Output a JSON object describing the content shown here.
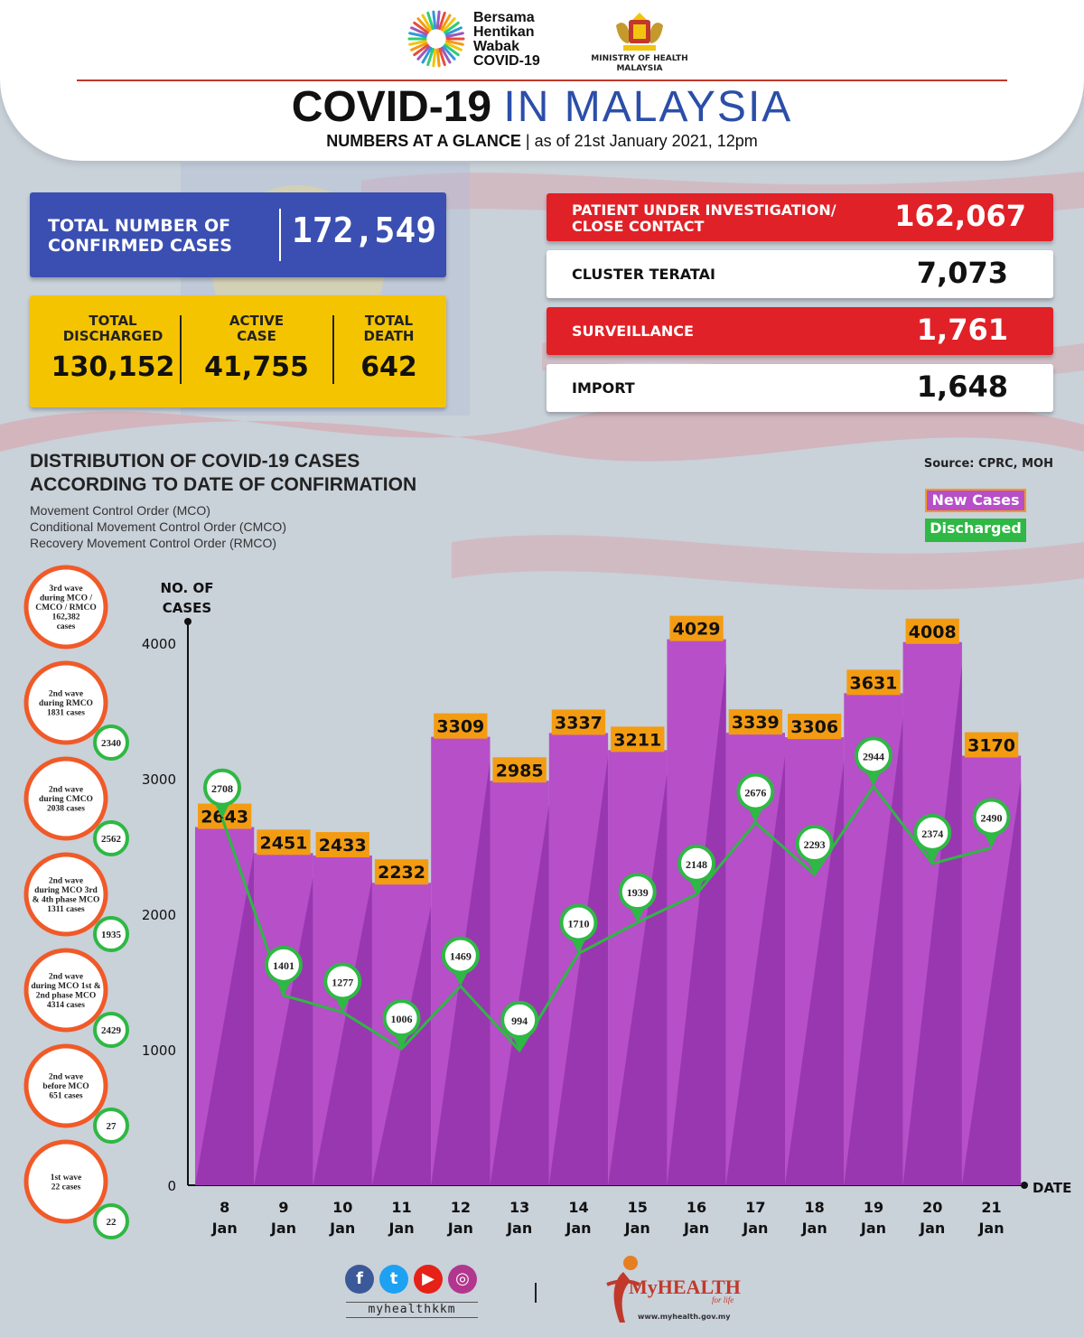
{
  "header": {
    "campaign_lines": [
      "Bersama",
      "Hentikan",
      "Wabak",
      "COVID-19"
    ],
    "ministry_lines": [
      "MINISTRY OF HEALTH",
      "MALAYSIA"
    ],
    "title_part1": "COVID-19",
    "title_part2": "IN MALAYSIA",
    "subtitle_bold": "NUMBERS AT A GLANCE",
    "subtitle_rest": "| as of 21st January 2021, 12pm"
  },
  "stats": {
    "total_confirmed": {
      "label_lines": [
        "TOTAL NUMBER OF",
        "CONFIRMED CASES"
      ],
      "value": "172,549"
    },
    "discharged": {
      "label_lines": [
        "TOTAL",
        "DISCHARGED"
      ],
      "value": "130,152"
    },
    "active": {
      "label_lines": [
        "ACTIVE",
        "CASE"
      ],
      "value": "41,755"
    },
    "death": {
      "label_lines": [
        "TOTAL",
        "DEATH"
      ],
      "value": "642"
    },
    "pui": {
      "label_lines": [
        "PATIENT UNDER INVESTIGATION/",
        "CLOSE CONTACT"
      ],
      "value": "162,067"
    },
    "cluster": {
      "label_lines": [
        "CLUSTER TERATAI"
      ],
      "value": "7,073"
    },
    "surveillance": {
      "label_lines": [
        "SURVEILLANCE"
      ],
      "value": "1,761"
    },
    "import": {
      "label_lines": [
        "IMPORT"
      ],
      "value": "1,648"
    }
  },
  "chart_heading": {
    "title_lines": [
      "DISTRIBUTION OF COVID-19 CASES",
      "ACCORDING TO DATE OF CONFIRMATION"
    ],
    "sub_lines": [
      "Movement Control Order (MCO)",
      "Conditional Movement Control Order (CMCO)",
      "Recovery Movement Control Order (RMCO)"
    ],
    "source": "Source: CPRC, MOH"
  },
  "waves": [
    {
      "lines": [
        "3rd wave",
        "during MCO /",
        "CMCO / RMCO",
        "162,382",
        "cases"
      ],
      "badge": ""
    },
    {
      "lines": [
        "2nd wave",
        "during RMCO",
        "1831 cases"
      ],
      "badge": "2340"
    },
    {
      "lines": [
        "2nd wave",
        "during CMCO",
        "2038 cases"
      ],
      "badge": "2562"
    },
    {
      "lines": [
        "2nd wave",
        "during MCO 3rd",
        "& 4th phase MCO",
        "1311 cases"
      ],
      "badge": "1935"
    },
    {
      "lines": [
        "2nd wave",
        "during MCO 1st &",
        "2nd phase MCO",
        "4314 cases"
      ],
      "badge": "2429"
    },
    {
      "lines": [
        "2nd wave",
        "before MCO",
        "651 cases"
      ],
      "badge": "27"
    },
    {
      "lines": [
        "1st wave",
        "22 cases"
      ],
      "badge": "22"
    }
  ],
  "colors": {
    "new_cases": "#b64fc8",
    "new_cases_dark": "#9433ab",
    "label_orange": "#f39c12",
    "discharged": "#2eb844",
    "red": "#e02127",
    "blue": "#3a4fb1",
    "yellow": "#f5c400",
    "wave_orange": "#f05a28"
  },
  "chart_data": {
    "type": "bar",
    "ylabel_lines": [
      "NO. OF",
      "CASES"
    ],
    "xlabel": "DATE",
    "ylim": [
      0,
      4000
    ],
    "yticks": [
      0,
      1000,
      2000,
      3000,
      4000
    ],
    "categories": [
      [
        "8",
        "Jan"
      ],
      [
        "9",
        "Jan"
      ],
      [
        "10",
        "Jan"
      ],
      [
        "11",
        "Jan"
      ],
      [
        "12",
        "Jan"
      ],
      [
        "13",
        "Jan"
      ],
      [
        "14",
        "Jan"
      ],
      [
        "15",
        "Jan"
      ],
      [
        "16",
        "Jan"
      ],
      [
        "17",
        "Jan"
      ],
      [
        "18",
        "Jan"
      ],
      [
        "19",
        "Jan"
      ],
      [
        "20",
        "Jan"
      ],
      [
        "21",
        "Jan"
      ]
    ],
    "series": [
      {
        "name": "New Cases",
        "kind": "bar",
        "values": [
          2643,
          2451,
          2433,
          2232,
          3309,
          2985,
          3337,
          3211,
          4029,
          3339,
          3306,
          3631,
          4008,
          3170
        ]
      },
      {
        "name": "Discharged",
        "kind": "line",
        "values": [
          2708,
          1401,
          1277,
          1006,
          1469,
          994,
          1710,
          1939,
          2148,
          2676,
          2293,
          2944,
          2374,
          2490
        ]
      }
    ],
    "legend": "top-right"
  },
  "footer": {
    "handle": "myhealthkkm",
    "social_icons": [
      "facebook-icon",
      "twitter-icon",
      "youtube-icon",
      "instagram-icon"
    ],
    "brand": "MyHEALTH",
    "brand_tag": "for life",
    "url": "www.myhealth.gov.my"
  }
}
